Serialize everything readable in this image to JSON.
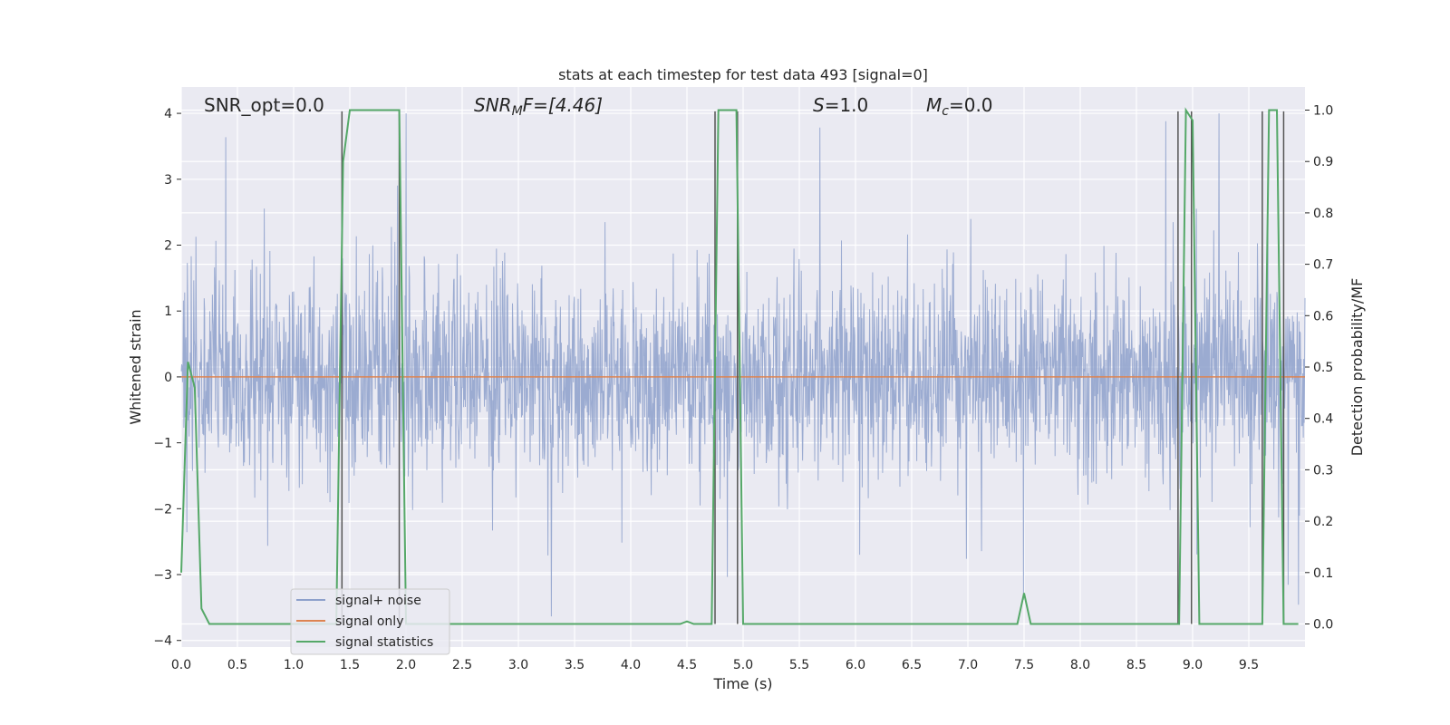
{
  "chart_data": {
    "type": "line",
    "title": "stats at each timestep for test data 493 [signal=0]",
    "xlabel": "Time (s)",
    "ylabel": "Whitened strain",
    "y2label": "Detection probability/MF",
    "xlim": [
      0,
      10
    ],
    "ylim": [
      -4.1,
      4.4
    ],
    "y2lim": [
      -0.045,
      1.045
    ],
    "x_ticks": [
      "0.0",
      "0.5",
      "1.0",
      "1.5",
      "2.0",
      "2.5",
      "3.0",
      "3.5",
      "4.0",
      "4.5",
      "5.0",
      "5.5",
      "6.0",
      "6.5",
      "7.0",
      "7.5",
      "8.0",
      "8.5",
      "9.0",
      "9.5"
    ],
    "y_ticks": [
      "4",
      "3",
      "2",
      "1",
      "0",
      "−1",
      "−2",
      "−3",
      "−4"
    ],
    "y2_ticks": [
      "1.0",
      "0.9",
      "0.8",
      "0.7",
      "0.6",
      "0.5",
      "0.4",
      "0.3",
      "0.2",
      "0.1",
      "0.0"
    ],
    "grid": true,
    "legend_position": "lower-left",
    "annotations": {
      "snr_opt": "SNR_opt=0.0",
      "snr_mf": "SNR",
      "snr_mf_sub": "M",
      "snr_mf_suffix": "F=[4.46]",
      "s": "S",
      "s_value": "=1.0",
      "mc": "M",
      "mc_sub": "c",
      "mc_value": "=0.0"
    },
    "series": [
      {
        "name": "signal+ noise",
        "color": "#8da0cb",
        "axis": "left",
        "envelope": "noise band, approx ±1.4 core with peaks from about -3.8 to 4.0"
      },
      {
        "name": "signal only",
        "color": "#dd8452",
        "axis": "left",
        "x": [
          0,
          10
        ],
        "y": [
          0,
          0
        ]
      },
      {
        "name": "signal statistics",
        "color": "#55a868",
        "axis": "right",
        "x": [
          0.0,
          0.06,
          0.12,
          0.18,
          0.25,
          1.38,
          1.44,
          1.5,
          1.94,
          2.0,
          2.06,
          4.44,
          4.5,
          4.56,
          4.72,
          4.78,
          4.94,
          5.0,
          5.06,
          7.44,
          7.5,
          7.56,
          8.88,
          8.94,
          9.0,
          9.06,
          9.62,
          9.68,
          9.75,
          9.81,
          9.94
        ],
        "y": [
          0.1,
          0.51,
          0.46,
          0.03,
          0.0,
          0.0,
          0.9,
          1.0,
          1.0,
          0.0,
          0.0,
          0.0,
          0.005,
          0.0,
          0.0,
          1.0,
          1.0,
          0.0,
          0.0,
          0.0,
          0.06,
          0.0,
          0.0,
          1.0,
          0.98,
          0.0,
          0.0,
          1.0,
          1.0,
          0.0,
          0.0
        ]
      }
    ],
    "vlines": [
      1.43,
      1.94,
      4.75,
      4.95,
      8.87,
      8.99,
      9.62,
      9.81
    ]
  },
  "legend": {
    "items": [
      {
        "label": "signal+ noise",
        "color": "#8da0cb"
      },
      {
        "label": "signal only",
        "color": "#dd8452"
      },
      {
        "label": "signal statistics",
        "color": "#55a868"
      }
    ]
  }
}
